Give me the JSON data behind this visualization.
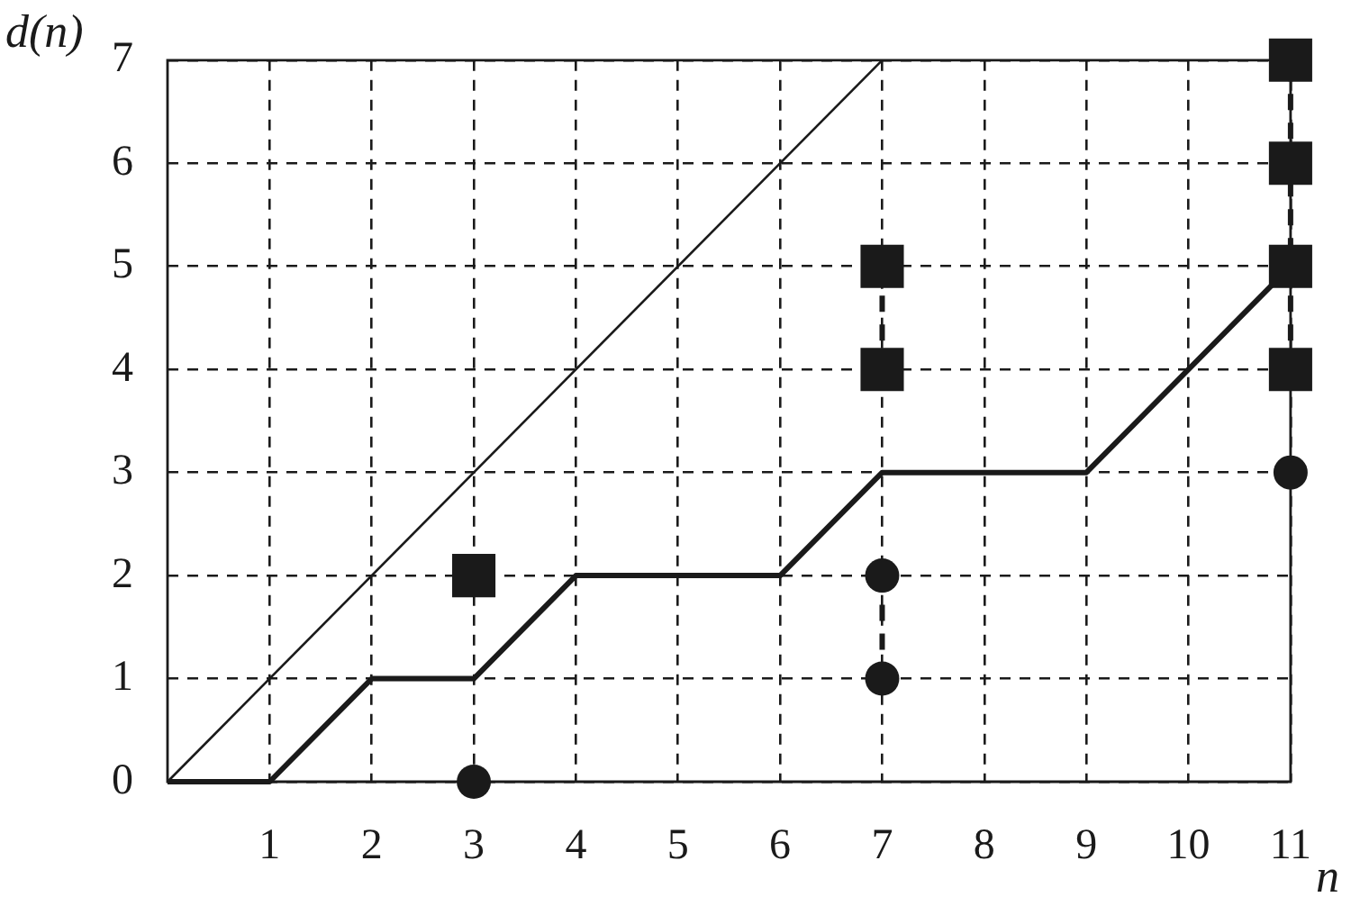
{
  "chart_data": {
    "type": "line",
    "xlabel": "n",
    "ylabel": "d(n)",
    "xlim": [
      0,
      11
    ],
    "ylim": [
      0,
      7
    ],
    "xticks": [
      1,
      2,
      3,
      4,
      5,
      6,
      7,
      8,
      9,
      10,
      11
    ],
    "yticks": [
      0,
      1,
      2,
      3,
      4,
      5,
      6,
      7
    ],
    "grid": true,
    "series": [
      {
        "x": [
          0,
          7
        ],
        "values": [
          0,
          7
        ],
        "color": "#1a1a1a",
        "marker": "none",
        "line_style": "solid"
      },
      {
        "x": [
          0,
          1,
          2,
          3,
          4,
          6,
          7,
          9,
          11
        ],
        "values": [
          0,
          0,
          1,
          1,
          2,
          2,
          3,
          3,
          5
        ],
        "color": "#1a1a1a",
        "marker": "none",
        "line_style": "solid"
      },
      {
        "x": [
          7,
          7
        ],
        "values": [
          1,
          2
        ],
        "color": "#1a1a1a",
        "marker": "none",
        "line_style": "dashed"
      },
      {
        "x": [
          7,
          7
        ],
        "values": [
          4,
          5
        ],
        "color": "#1a1a1a",
        "marker": "none",
        "line_style": "dashed"
      },
      {
        "x": [
          11,
          11
        ],
        "values": [
          4,
          7
        ],
        "color": "#1a1a1a",
        "marker": "none",
        "line_style": "dashed"
      },
      {
        "type": "scatter",
        "x": [
          3,
          7,
          7,
          11
        ],
        "values": [
          0,
          1,
          2,
          3
        ],
        "color": "#1a1a1a",
        "marker": "circle"
      },
      {
        "type": "scatter",
        "x": [
          3,
          7,
          7,
          11,
          11,
          11,
          11
        ],
        "values": [
          2,
          4,
          5,
          4,
          5,
          6,
          7
        ],
        "color": "#1a1a1a",
        "marker": "square"
      }
    ]
  }
}
